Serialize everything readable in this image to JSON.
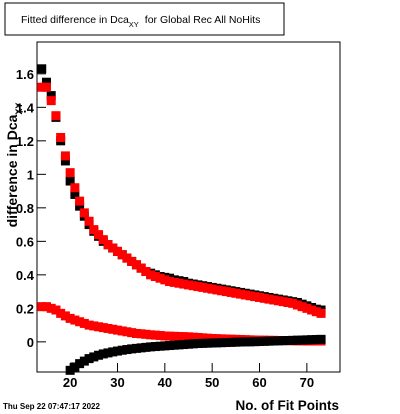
{
  "chart_data": {
    "type": "scatter",
    "title": "Fitted difference in Dca",
    "title_subscript": "XY",
    "title_suffix": "for Global Rec All NoHits",
    "y_label": "difference in Dca",
    "y_label_subscript": "XY",
    "x_label": "No. of Fit Points",
    "timestamp": "Thu Sep 22 07:47:17 2022",
    "xlim": [
      13,
      77
    ],
    "ylim": [
      -0.18,
      1.79
    ],
    "xticks": [
      20,
      30,
      40,
      50,
      60,
      70
    ],
    "yticks": [
      0,
      0.2,
      0.4,
      0.6,
      0.8,
      1,
      1.2,
      1.4,
      1.6
    ],
    "x": [
      14,
      15,
      16,
      17,
      18,
      19,
      20,
      21,
      22,
      23,
      24,
      25,
      26,
      27,
      28,
      29,
      30,
      31,
      32,
      33,
      34,
      35,
      36,
      37,
      38,
      39,
      40,
      41,
      42,
      43,
      44,
      45,
      46,
      47,
      48,
      49,
      50,
      51,
      52,
      53,
      54,
      55,
      56,
      57,
      58,
      59,
      60,
      61,
      62,
      63,
      64,
      65,
      66,
      67,
      68,
      69,
      70,
      71,
      72,
      73
    ],
    "series": [
      {
        "color": "#000000",
        "values": [
          1.63,
          1.55,
          1.47,
          1.34,
          1.2,
          1.08,
          0.96,
          0.88,
          0.81,
          0.75,
          0.7,
          0.66,
          0.63,
          0.6,
          0.58,
          0.56,
          0.54,
          0.52,
          0.5,
          0.48,
          0.46,
          0.44,
          0.42,
          0.41,
          0.4,
          0.39,
          0.385,
          0.38,
          0.37,
          0.365,
          0.36,
          0.35,
          0.345,
          0.34,
          0.335,
          0.33,
          0.325,
          0.32,
          0.315,
          0.31,
          0.305,
          0.3,
          0.295,
          0.29,
          0.285,
          0.28,
          0.275,
          0.27,
          0.265,
          0.26,
          0.255,
          0.25,
          0.245,
          0.24,
          0.235,
          0.225,
          0.215,
          0.205,
          0.195,
          0.19
        ]
      },
      {
        "color": "#ff0000",
        "values": [
          1.52,
          1.52,
          1.44,
          1.35,
          1.22,
          1.11,
          1.01,
          0.92,
          0.84,
          0.77,
          0.72,
          0.67,
          0.64,
          0.61,
          0.58,
          0.56,
          0.54,
          0.52,
          0.5,
          0.48,
          0.46,
          0.44,
          0.42,
          0.4,
          0.39,
          0.38,
          0.37,
          0.36,
          0.355,
          0.35,
          0.345,
          0.34,
          0.335,
          0.33,
          0.325,
          0.32,
          0.315,
          0.31,
          0.305,
          0.3,
          0.295,
          0.29,
          0.285,
          0.28,
          0.275,
          0.27,
          0.265,
          0.26,
          0.255,
          0.25,
          0.245,
          0.24,
          0.235,
          0.23,
          0.22,
          0.21,
          0.2,
          0.19,
          0.18,
          0.17
        ]
      },
      {
        "color": "#ff0000",
        "values": [
          0.21,
          0.21,
          0.2,
          0.19,
          0.17,
          0.155,
          0.14,
          0.13,
          0.12,
          0.11,
          0.1,
          0.095,
          0.09,
          0.085,
          0.08,
          0.075,
          0.07,
          0.065,
          0.06,
          0.055,
          0.05,
          0.048,
          0.045,
          0.042,
          0.04,
          0.038,
          0.035,
          0.034,
          0.033,
          0.032,
          0.031,
          0.03,
          0.028,
          0.026,
          0.024,
          0.022,
          0.02,
          0.019,
          0.018,
          0.017,
          0.016,
          0.015,
          0.014,
          0.013,
          0.012,
          0.011,
          0.01,
          0.01,
          0.009,
          0.009,
          0.008,
          0.008,
          0.007,
          0.007,
          0.006,
          0.006,
          0.005,
          0.005,
          0.005,
          0.005
        ]
      },
      {
        "color": "#000000",
        "values": [
          null,
          null,
          null,
          null,
          null,
          null,
          -0.17,
          -0.15,
          -0.13,
          -0.115,
          -0.1,
          -0.09,
          -0.08,
          -0.072,
          -0.066,
          -0.06,
          -0.055,
          -0.05,
          -0.046,
          -0.042,
          -0.039,
          -0.036,
          -0.033,
          -0.03,
          -0.028,
          -0.026,
          -0.024,
          -0.022,
          -0.02,
          -0.018,
          -0.016,
          -0.014,
          -0.012,
          -0.01,
          -0.009,
          -0.008,
          -0.007,
          -0.006,
          -0.005,
          -0.004,
          -0.003,
          -0.002,
          -0.001,
          0,
          0,
          0.001,
          0.002,
          0.003,
          0.004,
          0.005,
          0.006,
          0.007,
          0.008,
          0.009,
          0.01,
          0.011,
          0.012,
          0.013,
          0.014,
          0.015
        ]
      }
    ]
  }
}
